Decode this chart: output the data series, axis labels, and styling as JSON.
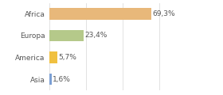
{
  "categories": [
    "Africa",
    "Europa",
    "America",
    "Asia"
  ],
  "values": [
    69.3,
    23.4,
    5.7,
    1.6
  ],
  "labels": [
    "69,3%",
    "23,4%",
    "5,7%",
    "1,6%"
  ],
  "colors": [
    "#e8b87a",
    "#b5c98a",
    "#f0c040",
    "#7b9fd4"
  ],
  "xlim": [
    0,
    100
  ],
  "background_color": "#ffffff",
  "bar_height": 0.52,
  "label_fontsize": 6.5,
  "tick_fontsize": 6.5,
  "grid_color": "#dddddd",
  "grid_positions": [
    0,
    25,
    50,
    75,
    100
  ]
}
